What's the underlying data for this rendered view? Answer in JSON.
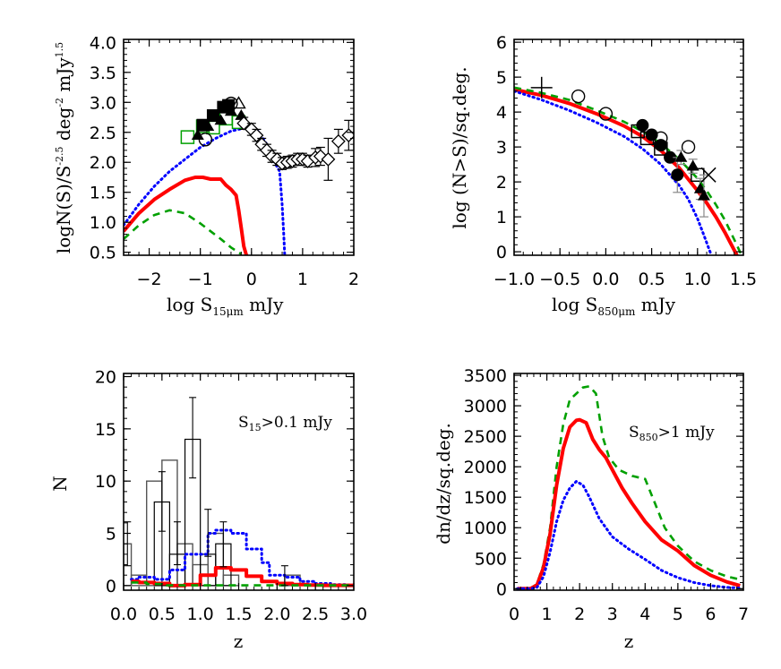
{
  "chart_data": [
    {
      "id": "panel_tl",
      "type": "line",
      "title": "",
      "xlabel": "log S15μm mJy",
      "xlabel_main": "log  S",
      "xlabel_sub": "15μm",
      "xlabel_tail": " mJy",
      "ylabel": "logN(S)/S^-2.5 deg^-2 mJy^1.5",
      "xlim": [
        -2.5,
        2.0
      ],
      "ylim": [
        0.45,
        4.05
      ],
      "xticks": [
        -2,
        -1,
        0,
        1,
        2
      ],
      "xtick_labels": [
        "−2",
        "−1",
        "0",
        "1",
        "2"
      ],
      "yticks": [
        0.5,
        1.0,
        1.5,
        2.0,
        2.5,
        3.0,
        3.5,
        4.0
      ],
      "ytick_labels": [
        "0.5",
        "1.0",
        "1.5",
        "2.0",
        "2.5",
        "3.0",
        "3.5",
        "4.0"
      ],
      "grid": false,
      "series": [
        {
          "name": "model total (dotted blue)",
          "style": "dotted",
          "color": "#0000ff",
          "x": [
            -2.5,
            -2.2,
            -1.9,
            -1.6,
            -1.3,
            -1.0,
            -0.7,
            -0.4,
            -0.1,
            0.1,
            0.3,
            0.45,
            0.55,
            0.6,
            0.63,
            0.65
          ],
          "y": [
            0.95,
            1.3,
            1.6,
            1.85,
            2.05,
            2.25,
            2.4,
            2.52,
            2.58,
            2.55,
            2.3,
            2.0,
            1.85,
            1.3,
            0.8,
            0.45
          ]
        },
        {
          "name": "model component (solid red)",
          "style": "solid",
          "color": "#ff0000",
          "x": [
            -2.5,
            -2.2,
            -1.9,
            -1.6,
            -1.3,
            -1.1,
            -0.95,
            -0.8,
            -0.6,
            -0.5,
            -0.4,
            -0.3,
            -0.25,
            -0.2,
            -0.15,
            -0.1
          ],
          "y": [
            0.85,
            1.15,
            1.38,
            1.55,
            1.7,
            1.75,
            1.75,
            1.72,
            1.72,
            1.62,
            1.55,
            1.45,
            1.2,
            0.9,
            0.6,
            0.45
          ]
        },
        {
          "name": "model component (dashed green)",
          "style": "dashed",
          "color": "#00a000",
          "x": [
            -2.5,
            -2.2,
            -1.9,
            -1.6,
            -1.3,
            -1.0,
            -0.8,
            -0.6,
            -0.4,
            -0.2
          ],
          "y": [
            0.72,
            0.95,
            1.12,
            1.2,
            1.15,
            0.98,
            0.85,
            0.72,
            0.58,
            0.47
          ]
        }
      ],
      "markers": [
        {
          "name": "open squares (green)",
          "symbol": "square-open",
          "color": "#00a000",
          "x": [
            -1.25,
            -0.95,
            -0.75,
            -0.5,
            -0.25
          ],
          "y": [
            2.42,
            2.6,
            2.58,
            2.73,
            2.67
          ]
        },
        {
          "name": "filled squares",
          "symbol": "square-filled",
          "color": "#000000",
          "x": [
            -0.95,
            -0.75,
            -0.55,
            -0.45
          ],
          "y": [
            2.62,
            2.78,
            2.92,
            2.95
          ]
        },
        {
          "name": "filled triangles",
          "symbol": "triangle-filled",
          "color": "#000000",
          "x": [
            -1.05,
            -0.85,
            -0.6,
            -0.4,
            -0.2
          ],
          "y": [
            2.45,
            2.6,
            2.7,
            2.85,
            2.78
          ]
        },
        {
          "name": "open triangles",
          "symbol": "triangle-open",
          "color": "#000000",
          "x": [
            -0.25
          ],
          "y": [
            2.98
          ]
        },
        {
          "name": "open circles",
          "symbol": "circle-open",
          "color": "#000000",
          "x": [
            -0.9,
            -0.4
          ],
          "y": [
            2.38,
            2.98
          ]
        },
        {
          "name": "open diamonds with error bars",
          "symbol": "diamond-open",
          "color": "#000000",
          "x": [
            -0.15,
            0.0,
            0.1,
            0.2,
            0.3,
            0.4,
            0.5,
            0.6,
            0.7,
            0.8,
            0.9,
            1.0,
            1.1,
            1.25,
            1.35,
            1.5,
            1.7,
            1.9
          ],
          "y": [
            2.65,
            2.55,
            2.45,
            2.3,
            2.2,
            2.1,
            2.05,
            1.98,
            2.0,
            2.02,
            2.05,
            2.05,
            2.02,
            2.08,
            2.1,
            2.05,
            2.35,
            2.45
          ],
          "yerr": [
            0.1,
            0.1,
            0.1,
            0.1,
            0.1,
            0.1,
            0.1,
            0.1,
            0.1,
            0.1,
            0.1,
            0.1,
            0.1,
            0.15,
            0.15,
            0.35,
            0.2,
            0.25
          ]
        }
      ]
    },
    {
      "id": "panel_tr",
      "type": "line",
      "title": "",
      "xlabel": "log S850μm mJy",
      "xlabel_main": "log  S",
      "xlabel_sub": "850μm",
      "xlabel_tail": " mJy",
      "ylabel": "log (N>S)/sq.deg.",
      "xlim": [
        -1.0,
        1.5
      ],
      "ylim": [
        -0.1,
        6.08
      ],
      "xticks": [
        -1.0,
        -0.5,
        0.0,
        0.5,
        1.0,
        1.5
      ],
      "xtick_labels": [
        "−1.0",
        "−0.5",
        "0.0",
        "0.5",
        "1.0",
        "1.5"
      ],
      "yticks": [
        0,
        1,
        2,
        3,
        4,
        5,
        6
      ],
      "ytick_labels": [
        "0",
        "1",
        "2",
        "3",
        "4",
        "5",
        "6"
      ],
      "grid": false,
      "series": [
        {
          "name": "model (solid red)",
          "style": "solid",
          "color": "#ff0000",
          "x": [
            -1.0,
            -0.7,
            -0.4,
            -0.1,
            0.2,
            0.4,
            0.6,
            0.8,
            1.0,
            1.1,
            1.2,
            1.3,
            1.38,
            1.43
          ],
          "y": [
            4.65,
            4.48,
            4.25,
            3.95,
            3.6,
            3.3,
            2.9,
            2.4,
            1.75,
            1.4,
            1.0,
            0.55,
            0.15,
            -0.1
          ]
        },
        {
          "name": "model (dashed green)",
          "style": "dashed",
          "color": "#00a000",
          "x": [
            -1.0,
            -0.7,
            -0.4,
            -0.1,
            0.2,
            0.4,
            0.6,
            0.8,
            1.0,
            1.1,
            1.2,
            1.3,
            1.4,
            1.48
          ],
          "y": [
            4.7,
            4.55,
            4.35,
            4.05,
            3.72,
            3.45,
            3.1,
            2.65,
            2.1,
            1.75,
            1.35,
            0.9,
            0.35,
            -0.1
          ]
        },
        {
          "name": "model (dotted blue)",
          "style": "dotted",
          "color": "#0000ff",
          "x": [
            -1.0,
            -0.7,
            -0.4,
            -0.1,
            0.2,
            0.4,
            0.6,
            0.8,
            0.9,
            1.0,
            1.08,
            1.15
          ],
          "y": [
            4.6,
            4.35,
            4.05,
            3.7,
            3.3,
            2.95,
            2.5,
            1.9,
            1.5,
            0.95,
            0.4,
            -0.1
          ]
        }
      ],
      "markers": [
        {
          "name": "plus",
          "symbol": "plus",
          "color": "#000000",
          "x": [
            -0.7
          ],
          "y": [
            4.7
          ]
        },
        {
          "name": "open circles",
          "symbol": "circle-open",
          "color": "#000000",
          "x": [
            -0.3,
            0.0,
            0.6,
            0.9
          ],
          "y": [
            4.45,
            3.95,
            3.25,
            3.0
          ]
        },
        {
          "name": "filled circles",
          "symbol": "circle-filled",
          "color": "#000000",
          "x": [
            0.4,
            0.5,
            0.6,
            0.7,
            0.78
          ],
          "y": [
            3.62,
            3.35,
            3.05,
            2.7,
            2.2
          ],
          "yerr": [
            0.1,
            0.1,
            0.1,
            0.1,
            0.5
          ]
        },
        {
          "name": "open squares",
          "symbol": "square-open",
          "color": "#000000",
          "x": [
            0.35,
            0.45,
            0.6,
            1.0
          ],
          "y": [
            3.45,
            3.25,
            2.95,
            2.2
          ]
        },
        {
          "name": "filled triangles",
          "symbol": "triangle-filled",
          "color": "#000000",
          "x": [
            0.82,
            0.95,
            1.03,
            1.07
          ],
          "y": [
            2.7,
            2.45,
            1.8,
            1.6
          ],
          "yerr": [
            0.2,
            0.2,
            0.3,
            0.6
          ]
        },
        {
          "name": "cross",
          "symbol": "x",
          "color": "#000000",
          "x": [
            1.12
          ],
          "y": [
            2.2
          ]
        }
      ]
    },
    {
      "id": "panel_bl",
      "type": "bar",
      "title": "",
      "xlabel": "z",
      "ylabel": "N",
      "annotation": {
        "main": "S",
        "sub": "15",
        "tail": ">0.1  mJy"
      },
      "xlim": [
        0.0,
        3.0
      ],
      "ylim": [
        -0.44,
        20.3
      ],
      "xticks": [
        0.0,
        0.5,
        1.0,
        1.5,
        2.0,
        2.5,
        3.0
      ],
      "xtick_labels": [
        "0.0",
        "0.5",
        "1.0",
        "1.5",
        "2.0",
        "2.5",
        "3.0"
      ],
      "yticks": [
        0,
        5,
        10,
        15,
        20
      ],
      "ytick_labels": [
        "0",
        "5",
        "10",
        "15",
        "20"
      ],
      "grid": false,
      "series": [
        {
          "name": "observed histogram A (gray)",
          "style": "step",
          "color": "#555555",
          "edges": [
            0.1,
            0.3,
            0.5,
            0.7,
            0.9,
            1.1,
            1.3,
            1.5,
            1.7,
            1.9,
            2.1,
            2.3
          ],
          "values": [
            1,
            10,
            12,
            4,
            2,
            5,
            1,
            1,
            0,
            0,
            1
          ],
          "bar_x": [
            0.0,
            0.1,
            0.3,
            0.5,
            0.7,
            0.9,
            1.1,
            1.3,
            2.1
          ],
          "bar_y": [
            4,
            1,
            10,
            12,
            4,
            2,
            5,
            1,
            1
          ]
        },
        {
          "name": "observed histogram B (black)",
          "style": "step",
          "color": "#000000",
          "edges": [
            0.4,
            0.6,
            0.8,
            1.0,
            1.2,
            1.4
          ],
          "values": [
            8,
            3,
            14,
            3,
            4
          ]
        },
        {
          "name": "model (dotted blue)",
          "style": "dotted-step",
          "color": "#0000ff",
          "edges": [
            0.1,
            0.2,
            0.4,
            0.6,
            0.8,
            0.9,
            1.0,
            1.1,
            1.2,
            1.4,
            1.6,
            1.8,
            1.9,
            2.1,
            2.3,
            2.5,
            2.7,
            2.9,
            3.0
          ],
          "values": [
            0.6,
            0.8,
            0.6,
            1.5,
            3.0,
            3.0,
            3.0,
            5.0,
            5.3,
            5.0,
            3.5,
            2.2,
            1.0,
            0.8,
            0.4,
            0.2,
            0.1,
            0.05
          ]
        },
        {
          "name": "model (solid red)",
          "style": "step",
          "color": "#ff0000",
          "edges": [
            0.1,
            0.2,
            0.4,
            0.6,
            0.8,
            1.0,
            1.2,
            1.4,
            1.6,
            1.8,
            2.0,
            2.2,
            2.4,
            2.6,
            3.0
          ],
          "values": [
            0.4,
            0.3,
            0.2,
            0.0,
            0.1,
            1.0,
            1.7,
            1.5,
            0.9,
            0.4,
            0.2,
            0.1,
            0.05,
            0.02
          ]
        },
        {
          "name": "model (dashed green)",
          "style": "dashed-step",
          "color": "#00a000",
          "edges": [
            0.1,
            0.3,
            0.5,
            3.0
          ],
          "values": [
            0.3,
            0.15,
            0.02
          ]
        }
      ],
      "errorbars": [
        {
          "x": 0.05,
          "y": 4,
          "lo": 1.9,
          "hi": 6.1
        },
        {
          "x": 0.5,
          "y": 8,
          "lo": 5.2,
          "hi": 10.9
        },
        {
          "x": 0.7,
          "y": 4,
          "lo": 2.0,
          "hi": 6.1
        },
        {
          "x": 0.9,
          "y": 14,
          "lo": 10.3,
          "hi": 18.0
        },
        {
          "x": 1.1,
          "y": 5,
          "lo": 2.8,
          "hi": 7.3
        },
        {
          "x": 1.3,
          "y": 4,
          "lo": 1.8,
          "hi": 6.1
        },
        {
          "x": 2.1,
          "y": 1,
          "lo": 0.0,
          "hi": 1.9
        }
      ]
    },
    {
      "id": "panel_br",
      "type": "line",
      "title": "",
      "xlabel": "z",
      "ylabel": "dn/dz/sq.deg.",
      "annotation": {
        "main": "S",
        "sub": "850",
        "tail": ">1  mJy"
      },
      "xlim": [
        0,
        7
      ],
      "ylim": [
        -25,
        3530
      ],
      "xticks": [
        0,
        1,
        2,
        3,
        4,
        5,
        6,
        7
      ],
      "xtick_labels": [
        "0",
        "1",
        "2",
        "3",
        "4",
        "5",
        "6",
        "7"
      ],
      "yticks": [
        0,
        500,
        1000,
        1500,
        2000,
        2500,
        3000,
        3500
      ],
      "ytick_labels": [
        "0",
        "500",
        "1000",
        "1500",
        "2000",
        "2500",
        "3000",
        "3500"
      ],
      "grid": false,
      "series": [
        {
          "name": "model (dashed green)",
          "style": "dashed",
          "color": "#00a000",
          "x": [
            0.1,
            0.5,
            0.7,
            0.9,
            1.1,
            1.3,
            1.5,
            1.7,
            1.9,
            2.1,
            2.3,
            2.5,
            2.7,
            2.9,
            3.2,
            3.6,
            4.0,
            4.3,
            4.6,
            5.0,
            5.5,
            6.0,
            6.5,
            6.9
          ],
          "y": [
            0,
            0,
            80,
            400,
            1000,
            2000,
            2700,
            3100,
            3200,
            3300,
            3320,
            3200,
            2500,
            2150,
            1950,
            1850,
            1800,
            1400,
            1000,
            700,
            450,
            300,
            200,
            150
          ]
        },
        {
          "name": "model (solid red)",
          "style": "solid",
          "color": "#ff0000",
          "x": [
            0.1,
            0.5,
            0.7,
            0.9,
            1.1,
            1.3,
            1.5,
            1.7,
            1.9,
            2.0,
            2.2,
            2.4,
            2.6,
            2.8,
            3.0,
            3.3,
            3.6,
            4.0,
            4.5,
            5.0,
            5.5,
            6.0,
            6.5,
            6.9
          ],
          "y": [
            0,
            0,
            60,
            350,
            900,
            1700,
            2300,
            2650,
            2760,
            2770,
            2720,
            2450,
            2280,
            2150,
            1950,
            1650,
            1400,
            1100,
            800,
            620,
            380,
            220,
            110,
            50
          ]
        },
        {
          "name": "model (dotted blue)",
          "style": "dotted",
          "color": "#0000ff",
          "x": [
            0.1,
            0.5,
            0.7,
            0.9,
            1.1,
            1.3,
            1.5,
            1.7,
            1.9,
            2.1,
            2.3,
            2.6,
            3.0,
            3.5,
            4.0,
            4.5,
            5.0,
            5.5,
            6.0,
            6.5,
            6.9
          ],
          "y": [
            0,
            0,
            20,
            200,
            600,
            1100,
            1450,
            1650,
            1760,
            1700,
            1500,
            1150,
            850,
            650,
            480,
            300,
            180,
            100,
            50,
            20,
            10
          ]
        }
      ]
    }
  ]
}
